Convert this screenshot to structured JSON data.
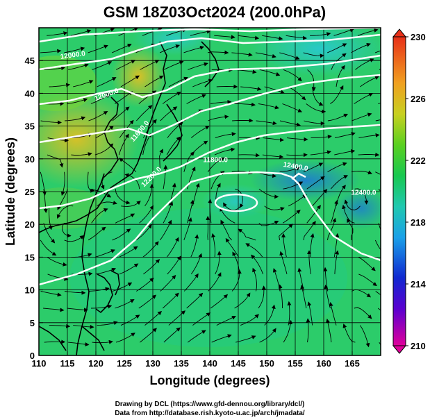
{
  "chart_data": {
    "type": "heatmap",
    "title": "GSM 18Z03Oct2024 (200.0hPa)",
    "xlabel": "Longitude (degrees)",
    "ylabel": "Latitude  (degrees)",
    "xlim": [
      110,
      170
    ],
    "ylim": [
      0,
      50
    ],
    "xticks": [
      "110",
      "115",
      "120",
      "125",
      "130",
      "135",
      "140",
      "145",
      "150",
      "155",
      "160",
      "165"
    ],
    "yticks": [
      "0",
      "5",
      "10",
      "15",
      "20",
      "25",
      "30",
      "35",
      "40",
      "45"
    ],
    "grid": true,
    "colorbar": {
      "min": 210,
      "max": 230,
      "ticks": [
        "210",
        "214",
        "218",
        "222",
        "226",
        "230"
      ]
    },
    "contour_labels": [
      "12000.0",
      "12000.0",
      "11600.0",
      "11800.0",
      "12200.0",
      "12400.0",
      "12400.0"
    ],
    "credits": [
      "Drawing by DCL (https://www.gfd-dennou.org/library/dcl/)",
      "Data from http://database.rish.kyoto-u.ac.jp/arch/jmadata/"
    ]
  },
  "colors": {
    "background": "#ffffff",
    "contour": "#ffffff",
    "streamline": "#000000",
    "coastline": "#000000"
  }
}
